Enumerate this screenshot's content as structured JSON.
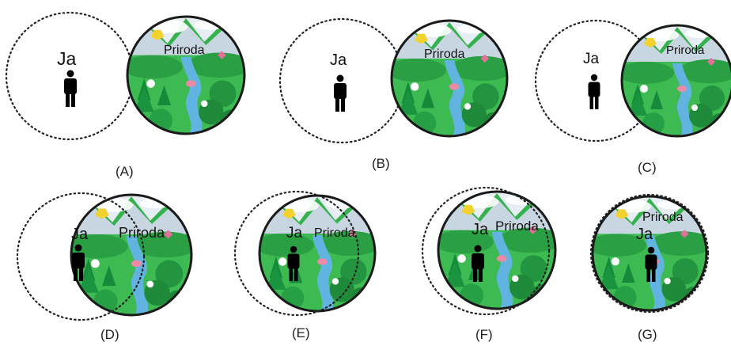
{
  "self_label": "Ja",
  "nature_label": "Priroda",
  "panels": [
    {
      "caption": "(A)"
    },
    {
      "caption": "(B)"
    },
    {
      "caption": "(C)"
    },
    {
      "caption": "(D)"
    },
    {
      "caption": "(E)"
    },
    {
      "caption": "(F)"
    },
    {
      "caption": "(G)"
    }
  ],
  "colors": {
    "forest": "#2fae49",
    "forest_dark": "#1f8a35",
    "sky": "#dfe8ef",
    "river": "#5aa7d8",
    "sun": "#f2d22e",
    "flower": "#e88aa8",
    "person": "#000000",
    "outline": "#222222"
  },
  "icons": [
    "person-icon",
    "nature-scene-icon",
    "sun-icon",
    "river-icon",
    "tree-icon",
    "flower-icon",
    "butterfly-icon"
  ]
}
